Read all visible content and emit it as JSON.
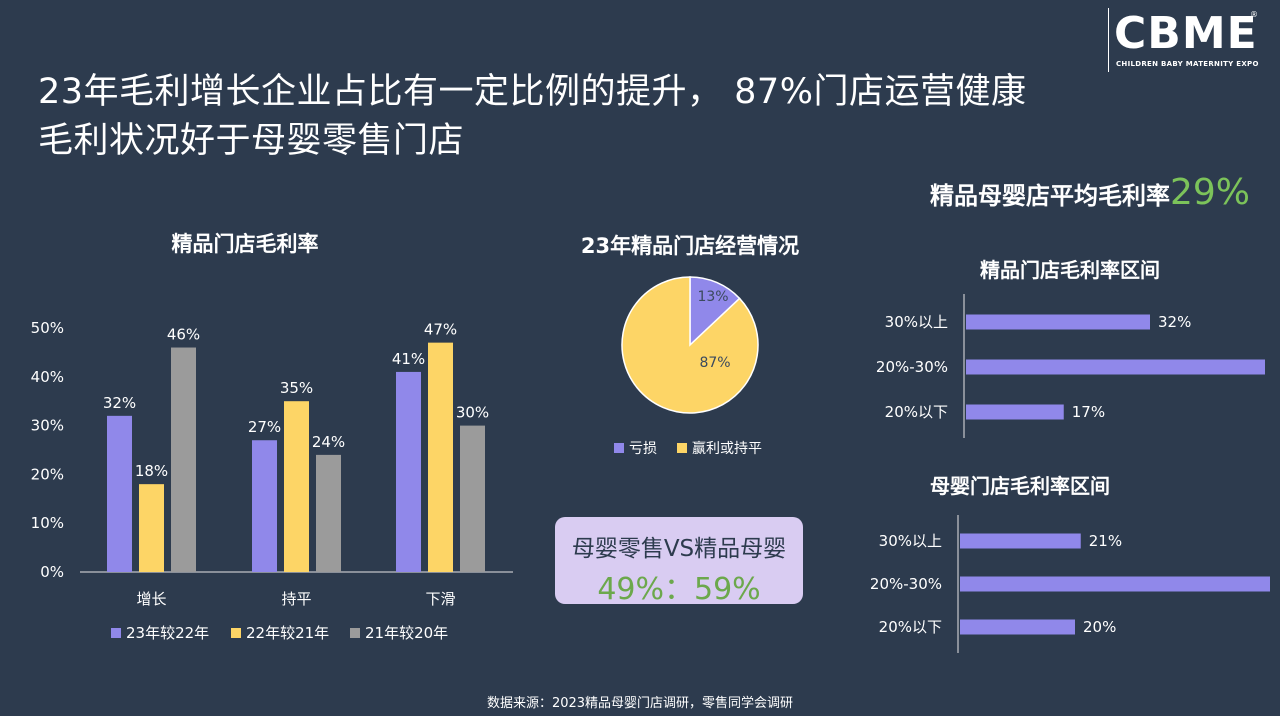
{
  "title_line1": "23年毛利增长企业占比有一定比例的提升， 87%门店运营健康",
  "title_line2": "毛利状况好于母婴零售门店",
  "logo": {
    "word": "CBME",
    "sub": "CHILDREN BABY MATERNITY EXPO",
    "reg": "®"
  },
  "source": "数据来源：2023精品母婴门店调研，零售同学会调研",
  "avg": {
    "label": "精品母婴店平均毛利率",
    "value": "29%"
  },
  "compare": {
    "title": "母婴零售VS精品母婴",
    "value": "49%：59%"
  },
  "colors": {
    "purple": "#9088ea",
    "yellow": "#fdd566",
    "gray": "#9b9b9b",
    "green": "#7cc35a"
  },
  "chart_data": [
    {
      "type": "bar",
      "title": "精品门店毛利率",
      "categories": [
        "增长",
        "持平",
        "下滑"
      ],
      "series": [
        {
          "name": "23年较22年",
          "values": [
            32,
            27,
            41
          ],
          "labels": [
            "32%",
            "27%",
            "41%"
          ],
          "color": "#9088ea"
        },
        {
          "name": "22年较21年",
          "values": [
            18,
            35,
            47
          ],
          "labels": [
            "18%",
            "35%",
            "47%"
          ],
          "color": "#fdd566"
        },
        {
          "name": "21年较20年",
          "values": [
            46,
            24,
            30
          ],
          "labels": [
            "46%",
            "24%",
            "30%"
          ],
          "color": "#9b9b9b"
        }
      ],
      "yticks": [
        "0%",
        "10%",
        "20%",
        "30%",
        "40%",
        "50%"
      ],
      "ylim": [
        0,
        50
      ],
      "legend": "bottom"
    },
    {
      "type": "pie",
      "title": "23年精品门店经营情况",
      "labels": [
        "亏损",
        "赢利或持平"
      ],
      "values": [
        13,
        87
      ],
      "value_labels": [
        "13%",
        "87%"
      ],
      "colors": [
        "#9088ea",
        "#fdd566"
      ],
      "legend": "bottom"
    },
    {
      "type": "bar",
      "orientation": "horizontal",
      "title": "精品门店毛利率区间",
      "categories": [
        "30%以上",
        "20%-30%",
        "20%以下"
      ],
      "values": [
        32,
        52,
        17
      ],
      "value_labels": [
        "32%",
        "52%",
        "17%"
      ],
      "xlim": [
        0,
        60
      ],
      "color": "#9088ea"
    },
    {
      "type": "bar",
      "orientation": "horizontal",
      "title": "母婴门店毛利率区间",
      "categories": [
        "30%以上",
        "20%-30%",
        "20%以下"
      ],
      "values": [
        21,
        59,
        20
      ],
      "value_labels": [
        "21%",
        "59%",
        "20%"
      ],
      "xlim": [
        0,
        60
      ],
      "color": "#9088ea"
    }
  ]
}
